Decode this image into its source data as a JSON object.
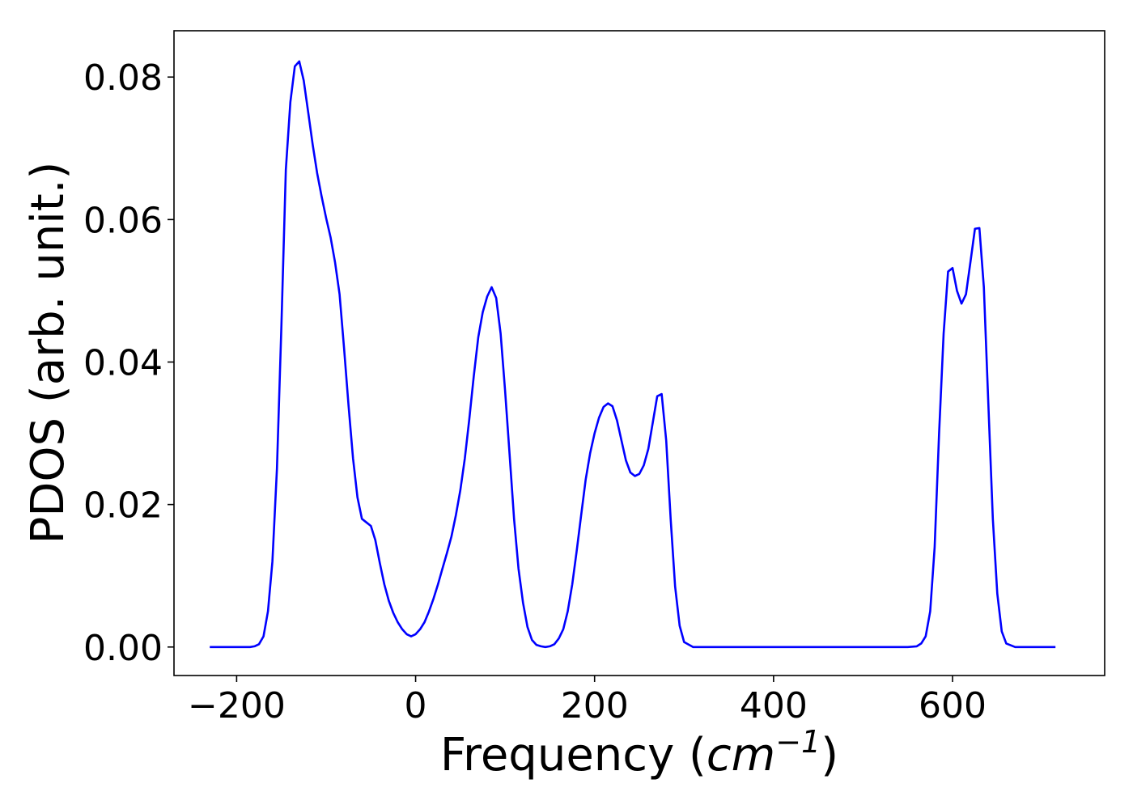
{
  "chart_data": {
    "type": "line",
    "xlabel_text": "Frequency (",
    "xlabel_unit_base": "cm",
    "xlabel_unit_exp": "−1",
    "xlabel_close": ")",
    "ylabel": "PDOS (arb. unit.)",
    "xlim": [
      -270,
      770
    ],
    "ylim": [
      -0.004,
      0.0865
    ],
    "xticks": [
      -200,
      0,
      200,
      400,
      600
    ],
    "xtick_labels": [
      "−200",
      "0",
      "200",
      "400",
      "600"
    ],
    "yticks": [
      0.0,
      0.02,
      0.04,
      0.06,
      0.08
    ],
    "ytick_labels": [
      "0.00",
      "0.02",
      "0.04",
      "0.06",
      "0.08"
    ],
    "grid": false,
    "line_color": "#0000ff",
    "series": [
      {
        "x": [
          -230,
          -200,
          -185,
          -180,
          -175,
          -170,
          -165,
          -160,
          -155,
          -150,
          -145,
          -140,
          -135,
          -130,
          -125,
          -120,
          -115,
          -110,
          -105,
          -100,
          -95,
          -90,
          -85,
          -80,
          -75,
          -70,
          -65,
          -60,
          -55,
          -50,
          -45,
          -40,
          -35,
          -30,
          -25,
          -20,
          -15,
          -10,
          -5,
          0,
          5,
          10,
          15,
          20,
          25,
          30,
          35,
          40,
          45,
          50,
          55,
          60,
          65,
          70,
          75,
          80,
          85,
          90,
          95,
          100,
          105,
          110,
          115,
          120,
          125,
          130,
          135,
          140,
          145,
          150,
          155,
          160,
          165,
          170,
          175,
          180,
          185,
          190,
          195,
          200,
          205,
          210,
          215,
          220,
          225,
          230,
          235,
          240,
          245,
          250,
          255,
          260,
          265,
          270,
          275,
          280,
          285,
          290,
          295,
          300,
          310,
          400,
          500,
          550,
          560,
          565,
          570,
          575,
          580,
          585,
          590,
          595,
          600,
          605,
          610,
          615,
          620,
          625,
          630,
          635,
          640,
          645,
          650,
          655,
          660,
          670,
          715
        ],
        "y": [
          0.0,
          0.0,
          0.0,
          0.0001,
          0.0004,
          0.0015,
          0.005,
          0.012,
          0.025,
          0.045,
          0.067,
          0.0765,
          0.0815,
          0.0822,
          0.0795,
          0.075,
          0.0705,
          0.0665,
          0.0632,
          0.0602,
          0.0575,
          0.054,
          0.0495,
          0.042,
          0.034,
          0.0265,
          0.021,
          0.018,
          0.0175,
          0.017,
          0.015,
          0.0118,
          0.0088,
          0.0065,
          0.0048,
          0.0035,
          0.0025,
          0.0018,
          0.0015,
          0.0018,
          0.0025,
          0.0035,
          0.005,
          0.0068,
          0.0088,
          0.011,
          0.0132,
          0.0155,
          0.0185,
          0.022,
          0.0265,
          0.032,
          0.038,
          0.0435,
          0.047,
          0.0492,
          0.0505,
          0.049,
          0.044,
          0.036,
          0.027,
          0.018,
          0.011,
          0.0062,
          0.0028,
          0.001,
          0.0003,
          0.0001,
          0.0,
          0.0001,
          0.0004,
          0.0012,
          0.0025,
          0.005,
          0.0088,
          0.0135,
          0.0185,
          0.0235,
          0.0272,
          0.03,
          0.0322,
          0.0337,
          0.0342,
          0.0338,
          0.0318,
          0.029,
          0.0262,
          0.0245,
          0.024,
          0.0243,
          0.0255,
          0.0278,
          0.0315,
          0.0352,
          0.0355,
          0.029,
          0.018,
          0.0085,
          0.003,
          0.0007,
          0.0,
          0.0,
          0.0,
          0.0,
          0.0001,
          0.0005,
          0.0015,
          0.005,
          0.014,
          0.03,
          0.044,
          0.0527,
          0.0532,
          0.05,
          0.0482,
          0.0495,
          0.054,
          0.0587,
          0.0588,
          0.0505,
          0.034,
          0.018,
          0.0075,
          0.0022,
          0.0005,
          0.0,
          0.0
        ]
      }
    ]
  }
}
